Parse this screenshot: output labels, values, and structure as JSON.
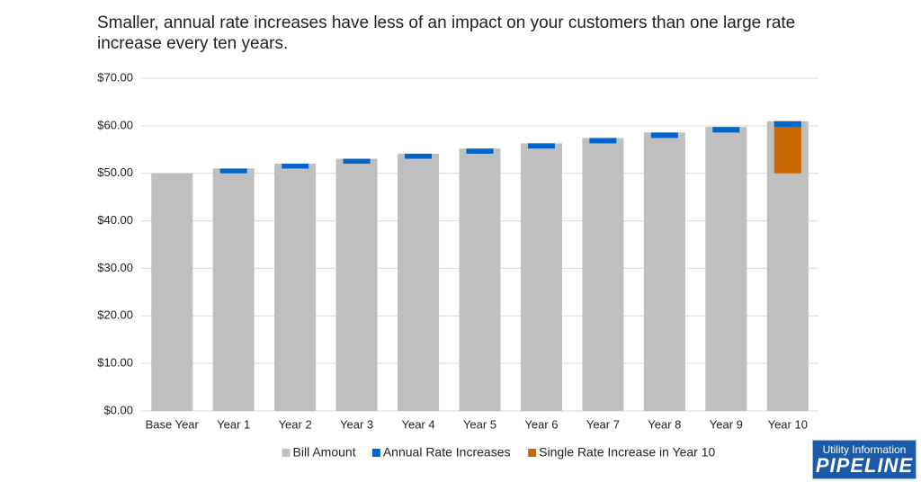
{
  "chart_data": {
    "type": "bar",
    "title": "Smaller, annual rate increases have less of an impact on your customers than one large rate increase every ten years.",
    "categories": [
      "Base Year",
      "Year 1",
      "Year 2",
      "Year 3",
      "Year 4",
      "Year 5",
      "Year 6",
      "Year 7",
      "Year 8",
      "Year 9",
      "Year 10"
    ],
    "series": [
      {
        "name": "Bill Amount",
        "color": "#bfbfbf",
        "values": [
          50,
          51,
          52.02,
          53.06,
          54.12,
          55.2,
          56.31,
          57.43,
          58.58,
          59.75,
          60.95
        ]
      },
      {
        "name": "Annual Rate Increases",
        "color": "#0066cc",
        "values": [
          null,
          1,
          1.02,
          1.04,
          1.06,
          1.08,
          1.1,
          1.13,
          1.15,
          1.17,
          1.2
        ]
      },
      {
        "name": "Single Rate Increase in Year 10",
        "color": "#cc6600",
        "values": [
          null,
          null,
          null,
          null,
          null,
          null,
          null,
          null,
          null,
          null,
          10.95
        ]
      }
    ],
    "ylim": [
      0,
      70
    ],
    "yticks": [
      {
        "value": 0,
        "label": "$0.00"
      },
      {
        "value": 10,
        "label": "$10.00"
      },
      {
        "value": 20,
        "label": "$20.00"
      },
      {
        "value": 30,
        "label": "$30.00"
      },
      {
        "value": 40,
        "label": "$40.00"
      },
      {
        "value": 50,
        "label": "$50.00"
      },
      {
        "value": 60,
        "label": "$60.00"
      },
      {
        "value": 70,
        "label": "$70.00"
      }
    ],
    "grid": true,
    "legend": "bottom"
  },
  "logo": {
    "line1": "Utility Information",
    "line2": "PIPELINE"
  }
}
